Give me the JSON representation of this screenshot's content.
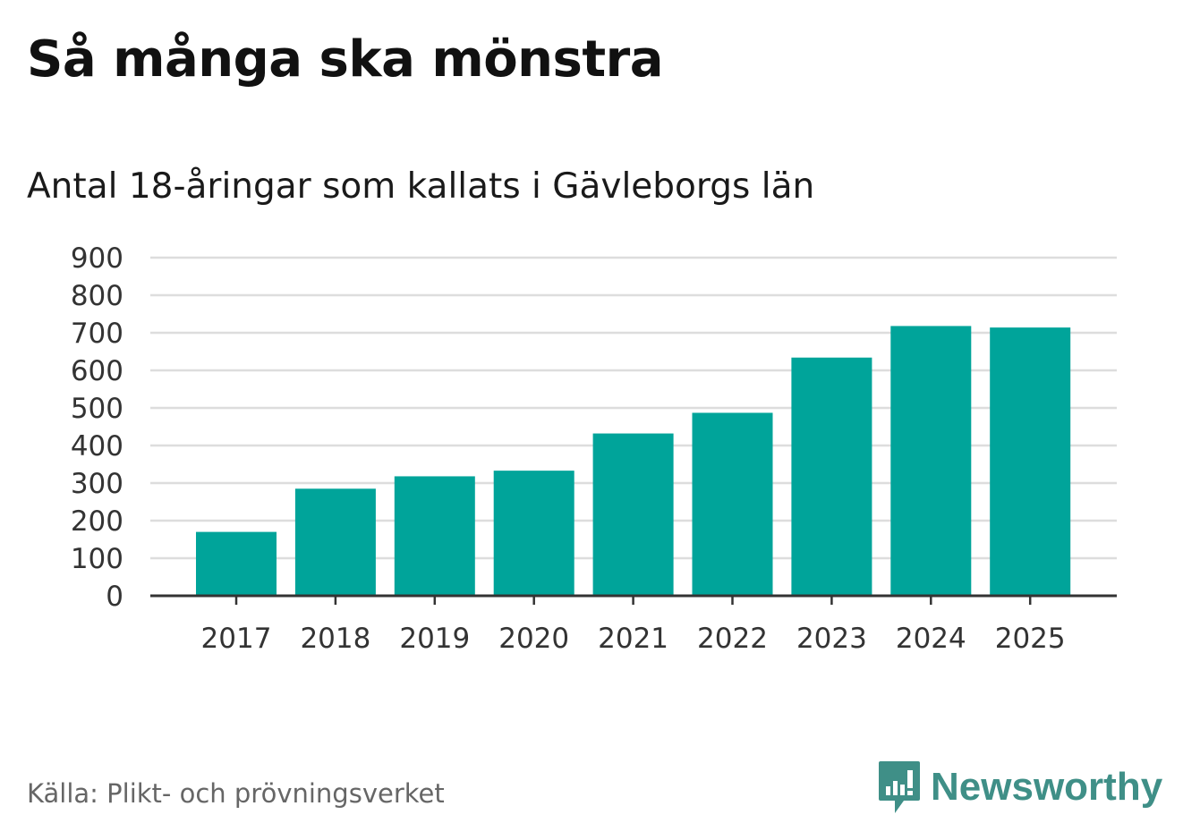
{
  "header": {
    "title": "Så många ska mönstra"
  },
  "chart_data": {
    "type": "bar",
    "title": "Så många ska mönstra",
    "subtitle": "Antal 18-åringar som kallats i Gävleborgs län",
    "xlabel": "",
    "ylabel": "",
    "categories": [
      "2017",
      "2018",
      "2019",
      "2020",
      "2021",
      "2022",
      "2023",
      "2024",
      "2025"
    ],
    "values": [
      170,
      285,
      318,
      333,
      432,
      487,
      634,
      718,
      714
    ],
    "ylim": [
      0,
      900
    ],
    "yticks": [
      "0",
      "100",
      "200",
      "300",
      "400",
      "500",
      "600",
      "700",
      "800",
      "900"
    ],
    "grid": true,
    "bar_color": "#00a49a",
    "grid_color": "#dddddd",
    "axis_color": "#333333"
  },
  "footer": {
    "source": "Källa: Plikt- och prövningsverket",
    "brand_name": "Newsworthy",
    "brand_icon": "newsworthy-logo-icon",
    "brand_color": "#3f8f87"
  }
}
